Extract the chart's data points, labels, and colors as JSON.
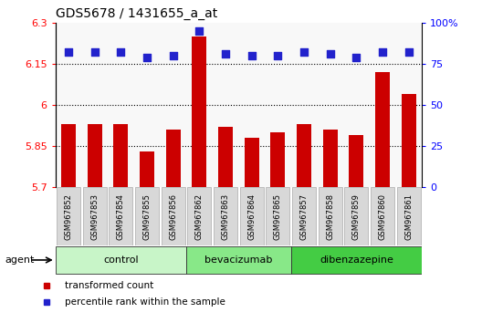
{
  "title": "GDS5678 / 1431655_a_at",
  "samples": [
    "GSM967852",
    "GSM967853",
    "GSM967854",
    "GSM967855",
    "GSM967856",
    "GSM967862",
    "GSM967863",
    "GSM967864",
    "GSM967865",
    "GSM967857",
    "GSM967858",
    "GSM967859",
    "GSM967860",
    "GSM967861"
  ],
  "transformed_count": [
    5.93,
    5.93,
    5.93,
    5.83,
    5.91,
    6.25,
    5.92,
    5.88,
    5.9,
    5.93,
    5.91,
    5.89,
    6.12,
    6.04
  ],
  "percentile_rank": [
    82,
    82,
    82,
    79,
    80,
    95,
    81,
    80,
    80,
    82,
    81,
    79,
    82,
    82
  ],
  "groups": [
    {
      "label": "control",
      "start": 0,
      "end": 5,
      "color": "#c8f5c8"
    },
    {
      "label": "bevacizumab",
      "start": 5,
      "end": 9,
      "color": "#88e888"
    },
    {
      "label": "dibenzazepine",
      "start": 9,
      "end": 14,
      "color": "#44cc44"
    }
  ],
  "agent_label": "agent",
  "bar_color": "#cc0000",
  "dot_color": "#2222cc",
  "ylim_left": [
    5.7,
    6.3
  ],
  "ylim_right": [
    0,
    100
  ],
  "yticks_left": [
    5.7,
    5.85,
    6.0,
    6.15,
    6.3
  ],
  "yticks_right": [
    0,
    25,
    50,
    75,
    100
  ],
  "ytick_labels_left": [
    "5.7",
    "5.85",
    "6",
    "6.15",
    "6.3"
  ],
  "ytick_labels_right": [
    "0",
    "25",
    "50",
    "75",
    "100%"
  ],
  "hlines": [
    5.85,
    6.0,
    6.15
  ],
  "plot_bg": "#f8f8f8",
  "bar_width": 0.55,
  "dot_size": 40,
  "legend_items": [
    {
      "label": "transformed count",
      "color": "#cc0000"
    },
    {
      "label": "percentile rank within the sample",
      "color": "#2222cc"
    }
  ]
}
